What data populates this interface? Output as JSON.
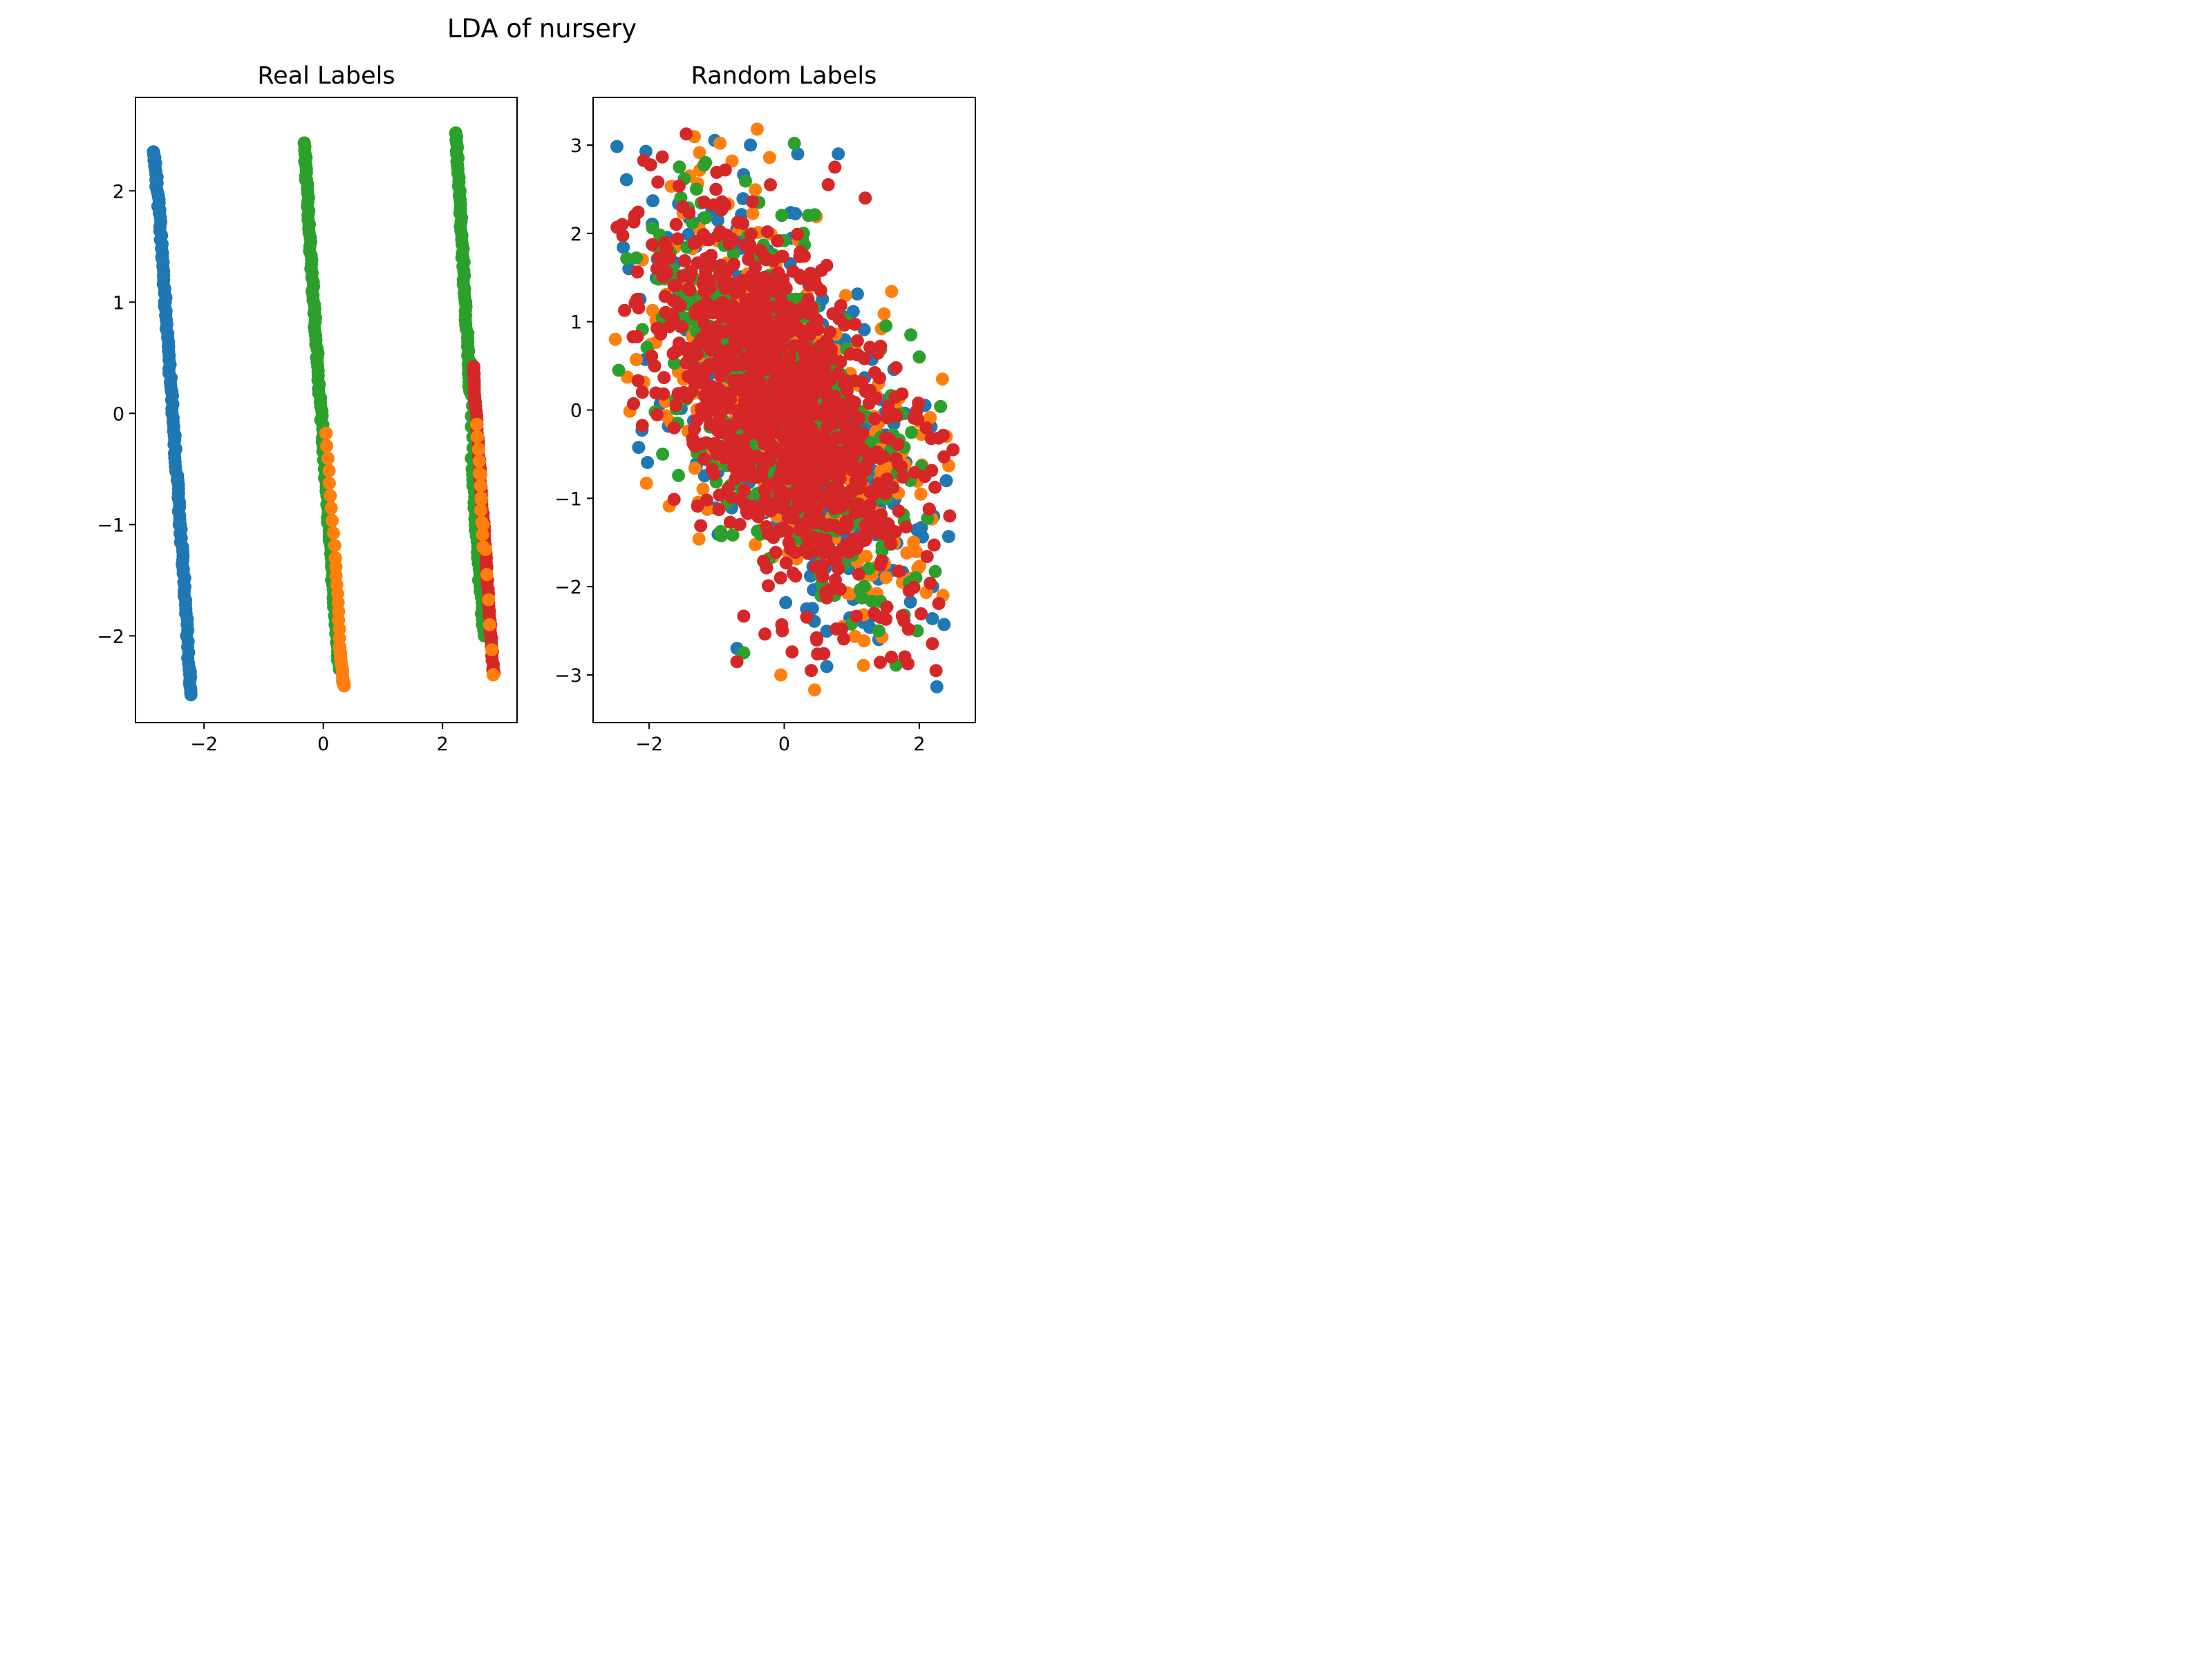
{
  "figure": {
    "suptitle": "LDA of nursery"
  },
  "palette": {
    "blue": "#1f77b4",
    "orange": "#ff7f0e",
    "green": "#2ca02c",
    "red": "#d62728",
    "axes": "#000000",
    "background": "#ffffff"
  },
  "chart_data": [
    {
      "type": "scatter",
      "title": "Real Labels",
      "xlabel": "",
      "ylabel": "",
      "xlim": [
        -3.15,
        3.25
      ],
      "ylim": [
        -2.78,
        2.84
      ],
      "xticks": [
        -2,
        0,
        2
      ],
      "yticks": [
        -2,
        -1,
        0,
        1,
        2
      ],
      "xtick_labels": [
        "−2",
        "0",
        "2"
      ],
      "ytick_labels": [
        "−2",
        "−1",
        "0",
        "1",
        "2"
      ],
      "grid": false,
      "legend": "none",
      "series": [
        {
          "color": "#1f77b4",
          "points": [
            [
              -2.85,
              2.35
            ],
            [
              -2.8,
              2.1
            ],
            [
              -2.75,
              1.8
            ],
            [
              -2.7,
              1.4
            ],
            [
              -2.65,
              1.0
            ],
            [
              -2.6,
              0.6
            ],
            [
              -2.55,
              0.2
            ],
            [
              -2.5,
              -0.2
            ],
            [
              -2.45,
              -0.6
            ],
            [
              -2.4,
              -1.0
            ],
            [
              -2.35,
              -1.4
            ],
            [
              -2.3,
              -1.8
            ],
            [
              -2.25,
              -2.3
            ],
            [
              -2.22,
              -2.53
            ]
          ]
        },
        {
          "color": "#2ca02c",
          "points": [
            [
              -0.32,
              2.43
            ],
            [
              -0.28,
              2.1
            ],
            [
              -0.24,
              1.7
            ],
            [
              -0.2,
              1.3
            ],
            [
              -0.15,
              0.9
            ],
            [
              -0.1,
              0.5
            ],
            [
              -0.05,
              0.1
            ],
            [
              0.0,
              -0.3
            ],
            [
              0.05,
              -0.7
            ],
            [
              0.1,
              -1.1
            ],
            [
              0.15,
              -1.5
            ],
            [
              0.2,
              -1.9
            ],
            [
              0.27,
              -2.3
            ]
          ]
        },
        {
          "color": "#ff7f0e",
          "points": [
            [
              0.05,
              -0.18
            ],
            [
              0.2,
              -1.3
            ],
            [
              0.28,
              -2.1
            ],
            [
              0.33,
              -2.4
            ],
            [
              0.35,
              -2.45
            ]
          ]
        },
        {
          "color": "#2ca02c",
          "points": [
            [
              2.22,
              2.52
            ],
            [
              2.26,
              2.2
            ],
            [
              2.3,
              1.8
            ],
            [
              2.34,
              1.4
            ],
            [
              2.38,
              1.0
            ],
            [
              2.42,
              0.6
            ],
            [
              2.46,
              0.2
            ],
            [
              2.48,
              0.45
            ],
            [
              2.5,
              -0.5
            ],
            [
              2.55,
              -1.0
            ],
            [
              2.62,
              -1.5
            ],
            [
              2.7,
              -2.0
            ]
          ]
        },
        {
          "color": "#d62728",
          "points": [
            [
              2.52,
              0.42
            ],
            [
              2.55,
              0.1
            ],
            [
              2.6,
              -0.3
            ],
            [
              2.65,
              -0.7
            ],
            [
              2.7,
              -1.1
            ],
            [
              2.75,
              -1.5
            ],
            [
              2.8,
              -1.9
            ],
            [
              2.85,
              -2.3
            ],
            [
              2.86,
              -2.34
            ]
          ]
        },
        {
          "color": "#ff7f0e",
          "points": [
            [
              2.85,
              -2.35
            ],
            [
              2.58,
              -0.1
            ],
            [
              2.68,
              -1.2
            ]
          ]
        }
      ]
    },
    {
      "type": "scatter",
      "title": "Random Labels",
      "xlabel": "",
      "ylabel": "",
      "xlim": [
        -2.83,
        2.83
      ],
      "ylim": [
        -3.54,
        3.54
      ],
      "xticks": [
        -2,
        0,
        2
      ],
      "yticks": [
        -3,
        -2,
        -1,
        0,
        1,
        2,
        3
      ],
      "xtick_labels": [
        "−2",
        "0",
        "2"
      ],
      "ytick_labels": [
        "−3",
        "−2",
        "−1",
        "0",
        "1",
        "2",
        "3"
      ],
      "grid": false,
      "legend": "none",
      "distribution": {
        "center": [
          0,
          0
        ],
        "x_halfwidth": 2.5,
        "y_halfwidth": 3.2,
        "correlation": -0.55
      },
      "series": [
        {
          "color": "#1f77b4",
          "points": [
            [
              -0.5,
              3.0
            ],
            [
              0.8,
              2.9
            ],
            [
              1.4,
              -2.6
            ],
            [
              -2.3,
              1.6
            ],
            [
              2.2,
              -2.0
            ],
            [
              0.2,
              2.9
            ],
            [
              -0.7,
              -2.7
            ],
            [
              2.4,
              -0.8
            ]
          ]
        },
        {
          "color": "#ff7f0e",
          "points": [
            [
              -0.4,
              3.18
            ],
            [
              0.45,
              -3.17
            ],
            [
              -1.4,
              2.65
            ],
            [
              2.4,
              -0.3
            ],
            [
              -2.5,
              0.8
            ],
            [
              1.75,
              -1.95
            ],
            [
              2.35,
              -2.1
            ],
            [
              -0.05,
              -3.0
            ]
          ]
        },
        {
          "color": "#2ca02c",
          "points": [
            [
              0.15,
              3.02
            ],
            [
              -2.45,
              0.45
            ],
            [
              -0.6,
              -2.75
            ],
            [
              1.95,
              -1.9
            ],
            [
              -1.3,
              2.5
            ],
            [
              2.0,
              0.6
            ],
            [
              1.4,
              -2.5
            ],
            [
              -1.8,
              -0.5
            ]
          ]
        },
        {
          "color": "#d62728",
          "points": [
            [
              -2.4,
              2.1
            ],
            [
              0.75,
              2.75
            ],
            [
              2.5,
              -0.45
            ],
            [
              0.4,
              -2.95
            ],
            [
              -0.7,
              -2.85
            ],
            [
              0.85,
              -2.48
            ],
            [
              1.2,
              2.4
            ],
            [
              -1.5,
              2.3
            ],
            [
              2.45,
              -1.2
            ],
            [
              -2.1,
              0.2
            ]
          ]
        }
      ]
    }
  ]
}
